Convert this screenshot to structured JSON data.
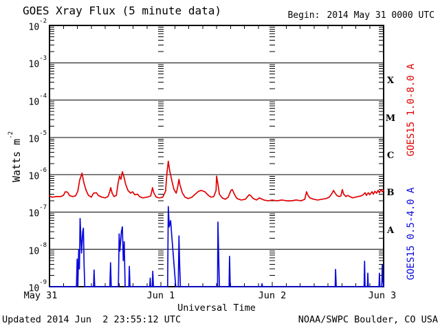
{
  "header": {
    "title": "GOES Xray Flux (5 minute data)",
    "begin_label": "Begin:",
    "begin_value": "2014 May 31 0000 UTC"
  },
  "footer": {
    "updated": "Updated 2014 Jun  2 23:55:12 UTC",
    "source": "NOAA/SWPC Boulder, CO USA"
  },
  "colors": {
    "background": "#ffffff",
    "axis": "#000000",
    "long_band": "#e00000",
    "short_band": "#0909d9"
  },
  "chart_data": {
    "type": "line",
    "title": "GOES Xray Flux (5 minute data)",
    "xlabel": "Universal Time",
    "ylabel": "Watts m^-2",
    "ylabel_base": "Watts m",
    "ylabel_sup": "-2",
    "y_scale": "log",
    "ylim": [
      1e-09,
      0.01
    ],
    "y_tick_exponents": [
      -2,
      -3,
      -4,
      -5,
      -6,
      -7,
      -8,
      -9
    ],
    "x_ticks": [
      "May 31",
      "Jun 1",
      "Jun 2",
      "Jun 3"
    ],
    "x_range_hours": [
      0,
      72
    ],
    "x_minor_tick_hours": 3,
    "grid": "solid horizontal lines at each decade; log-minor dash columns at day boundaries",
    "legend_position": "rotated labels right of plot",
    "class_labels": [
      "X",
      "M",
      "C",
      "B",
      "A"
    ],
    "series": [
      {
        "name": "GOES15 1.0-8.0 A",
        "color": "#e00000",
        "units": "Watts m^-2",
        "points": [
          [
            0,
            2.7e-07
          ],
          [
            0.6,
            2.5e-07
          ],
          [
            1.5,
            2.6e-07
          ],
          [
            2.4,
            2.6e-07
          ],
          [
            3.0,
            2.8e-07
          ],
          [
            3.4,
            3.5e-07
          ],
          [
            3.9,
            3.4e-07
          ],
          [
            4.3,
            2.8e-07
          ],
          [
            4.9,
            2.6e-07
          ],
          [
            5.6,
            2.7e-07
          ],
          [
            6.1,
            3.6e-07
          ],
          [
            6.5,
            7.2e-07
          ],
          [
            7.0,
            1.1e-06
          ],
          [
            7.1,
            9.6e-07
          ],
          [
            7.4,
            6.1e-07
          ],
          [
            7.9,
            3.8e-07
          ],
          [
            8.4,
            2.8e-07
          ],
          [
            9.0,
            2.5e-07
          ],
          [
            9.5,
            3.2e-07
          ],
          [
            10.1,
            3.3e-07
          ],
          [
            10.5,
            2.8e-07
          ],
          [
            11.3,
            2.5e-07
          ],
          [
            12.0,
            2.4e-07
          ],
          [
            12.6,
            2.6e-07
          ],
          [
            13.0,
            3.6e-07
          ],
          [
            13.2,
            4.5e-07
          ],
          [
            13.5,
            3.2e-07
          ],
          [
            13.9,
            2.6e-07
          ],
          [
            14.4,
            2.8e-07
          ],
          [
            14.8,
            6.1e-07
          ],
          [
            15.1,
            9.2e-07
          ],
          [
            15.4,
            7.5e-07
          ],
          [
            15.7,
            1.2e-06
          ],
          [
            16.0,
            9.2e-07
          ],
          [
            16.4,
            5.6e-07
          ],
          [
            16.9,
            3.8e-07
          ],
          [
            17.5,
            3.2e-07
          ],
          [
            17.9,
            3.5e-07
          ],
          [
            18.4,
            2.9e-07
          ],
          [
            19.0,
            3e-07
          ],
          [
            19.4,
            2.6e-07
          ],
          [
            20.1,
            2.4e-07
          ],
          [
            21.0,
            2.5e-07
          ],
          [
            21.8,
            2.7e-07
          ],
          [
            22.2,
            4.5e-07
          ],
          [
            22.5,
            3.2e-07
          ],
          [
            23.0,
            2.5e-07
          ],
          [
            23.7,
            2.4e-07
          ],
          [
            24.4,
            2.5e-07
          ],
          [
            25.0,
            3.6e-07
          ],
          [
            25.3,
            1.1e-06
          ],
          [
            25.6,
            2.3e-06
          ],
          [
            25.9,
            1.3e-06
          ],
          [
            26.4,
            6.6e-07
          ],
          [
            26.8,
            4.1e-07
          ],
          [
            27.3,
            3.2e-07
          ],
          [
            27.6,
            4.5e-07
          ],
          [
            27.9,
            7.5e-07
          ],
          [
            28.1,
            5.4e-07
          ],
          [
            28.6,
            3.3e-07
          ],
          [
            29.2,
            2.5e-07
          ],
          [
            29.9,
            2.3e-07
          ],
          [
            30.7,
            2.5e-07
          ],
          [
            31.4,
            3e-07
          ],
          [
            32.1,
            3.6e-07
          ],
          [
            32.7,
            3.8e-07
          ],
          [
            33.5,
            3.5e-07
          ],
          [
            34.1,
            2.9e-07
          ],
          [
            34.8,
            2.5e-07
          ],
          [
            35.4,
            2.6e-07
          ],
          [
            35.9,
            3.8e-07
          ],
          [
            36.0,
            9.2e-07
          ],
          [
            36.3,
            5.6e-07
          ],
          [
            36.6,
            3e-07
          ],
          [
            37.2,
            2.4e-07
          ],
          [
            37.9,
            2.2e-07
          ],
          [
            38.5,
            2.5e-07
          ],
          [
            39.1,
            3.8e-07
          ],
          [
            39.4,
            4e-07
          ],
          [
            39.9,
            2.9e-07
          ],
          [
            40.4,
            2.3e-07
          ],
          [
            41.3,
            2.1e-07
          ],
          [
            42.2,
            2.2e-07
          ],
          [
            43.0,
            2.9e-07
          ],
          [
            43.3,
            2.8e-07
          ],
          [
            43.9,
            2.3e-07
          ],
          [
            44.6,
            2.1e-07
          ],
          [
            45.2,
            2.4e-07
          ],
          [
            46.2,
            2.1e-07
          ],
          [
            47.1,
            2e-07
          ],
          [
            48.0,
            2.1e-07
          ],
          [
            49.0,
            2e-07
          ],
          [
            50.1,
            2.1e-07
          ],
          [
            51.1,
            2e-07
          ],
          [
            52.1,
            2e-07
          ],
          [
            53.2,
            2.1e-07
          ],
          [
            54.2,
            2e-07
          ],
          [
            55.0,
            2.2e-07
          ],
          [
            55.4,
            3.5e-07
          ],
          [
            55.7,
            2.8e-07
          ],
          [
            56.1,
            2.4e-07
          ],
          [
            56.9,
            2.2e-07
          ],
          [
            57.8,
            2.1e-07
          ],
          [
            58.7,
            2.2e-07
          ],
          [
            59.6,
            2.3e-07
          ],
          [
            60.3,
            2.5e-07
          ],
          [
            60.9,
            3.2e-07
          ],
          [
            61.2,
            3.8e-07
          ],
          [
            61.5,
            3.3e-07
          ],
          [
            61.9,
            2.8e-07
          ],
          [
            62.4,
            2.6e-07
          ],
          [
            62.8,
            2.7e-07
          ],
          [
            63.1,
            4e-07
          ],
          [
            63.4,
            3e-07
          ],
          [
            63.9,
            2.6e-07
          ],
          [
            64.3,
            2.8e-07
          ],
          [
            64.7,
            2.6e-07
          ],
          [
            65.3,
            2.4e-07
          ],
          [
            65.9,
            2.5e-07
          ],
          [
            66.5,
            2.6e-07
          ],
          [
            67.1,
            2.7e-07
          ],
          [
            67.6,
            2.9e-07
          ],
          [
            68.0,
            3.3e-07
          ],
          [
            68.3,
            2.8e-07
          ],
          [
            68.7,
            3.3e-07
          ],
          [
            69.0,
            2.9e-07
          ],
          [
            69.5,
            3.5e-07
          ],
          [
            69.8,
            3e-07
          ],
          [
            70.1,
            3.6e-07
          ],
          [
            70.5,
            3.2e-07
          ],
          [
            70.8,
            3.8e-07
          ],
          [
            71.1,
            3.3e-07
          ],
          [
            71.4,
            4e-07
          ],
          [
            71.7,
            3.5e-07
          ],
          [
            72,
            3.8e-07
          ]
        ]
      },
      {
        "name": "GOES15 0.5-4.0 A",
        "color": "#0909d9",
        "units": "Watts m^-2",
        "points": [
          [
            0,
            1e-09
          ],
          [
            5.8,
            1e-09
          ],
          [
            5.95,
            5.5e-09
          ],
          [
            6.1,
            1e-09
          ],
          [
            6.3,
            1e-08
          ],
          [
            6.45,
            3e-09
          ],
          [
            6.6,
            6.7e-08
          ],
          [
            6.9,
            8e-09
          ],
          [
            7.15,
            3e-08
          ],
          [
            7.3,
            3.7e-08
          ],
          [
            7.45,
            4e-09
          ],
          [
            7.6,
            1e-09
          ],
          [
            9.5,
            1e-09
          ],
          [
            9.6,
            2.8e-09
          ],
          [
            9.75,
            1e-09
          ],
          [
            13.0,
            1e-09
          ],
          [
            13.15,
            4.4e-09
          ],
          [
            13.3,
            1e-09
          ],
          [
            14.85,
            1e-09
          ],
          [
            15.0,
            2.6e-08
          ],
          [
            15.15,
            9e-09
          ],
          [
            15.5,
            3e-08
          ],
          [
            15.7,
            4e-08
          ],
          [
            15.9,
            5e-09
          ],
          [
            16.1,
            1.6e-08
          ],
          [
            16.3,
            1e-09
          ],
          [
            17.1,
            1e-09
          ],
          [
            17.2,
            3.5e-09
          ],
          [
            17.35,
            1e-09
          ],
          [
            21.6,
            1e-09
          ],
          [
            21.7,
            1.7e-09
          ],
          [
            21.8,
            1e-09
          ],
          [
            22.15,
            1e-09
          ],
          [
            22.25,
            2.6e-09
          ],
          [
            22.4,
            1e-09
          ],
          [
            25.45,
            1e-09
          ],
          [
            25.6,
            1.4e-07
          ],
          [
            25.8,
            4e-08
          ],
          [
            26.1,
            5.9e-08
          ],
          [
            26.35,
            2.2e-08
          ],
          [
            26.6,
            9e-09
          ],
          [
            26.9,
            3e-09
          ],
          [
            27.2,
            1e-09
          ],
          [
            27.75,
            1e-09
          ],
          [
            27.9,
            2.3e-08
          ],
          [
            28.05,
            4e-09
          ],
          [
            28.2,
            1e-09
          ],
          [
            36.2,
            1e-09
          ],
          [
            36.3,
            5.4e-08
          ],
          [
            36.45,
            8e-09
          ],
          [
            36.6,
            1e-09
          ],
          [
            38.7,
            1e-09
          ],
          [
            38.8,
            6.5e-09
          ],
          [
            38.95,
            1e-09
          ],
          [
            45.7,
            1e-09
          ],
          [
            45.8,
            1.2e-09
          ],
          [
            45.9,
            1e-09
          ],
          [
            61.55,
            1e-09
          ],
          [
            61.65,
            2.9e-09
          ],
          [
            61.8,
            1e-09
          ],
          [
            67.8,
            1e-09
          ],
          [
            67.9,
            4.8e-09
          ],
          [
            68.0,
            1e-09
          ],
          [
            68.5,
            1e-09
          ],
          [
            68.6,
            2.3e-09
          ],
          [
            68.7,
            1e-09
          ],
          [
            71.0,
            1e-09
          ],
          [
            71.1,
            2.3e-09
          ],
          [
            71.2,
            1e-09
          ],
          [
            71.6,
            1e-09
          ],
          [
            71.72,
            3.9e-09
          ],
          [
            71.85,
            1.5e-09
          ],
          [
            72,
            1e-09
          ]
        ]
      }
    ]
  }
}
